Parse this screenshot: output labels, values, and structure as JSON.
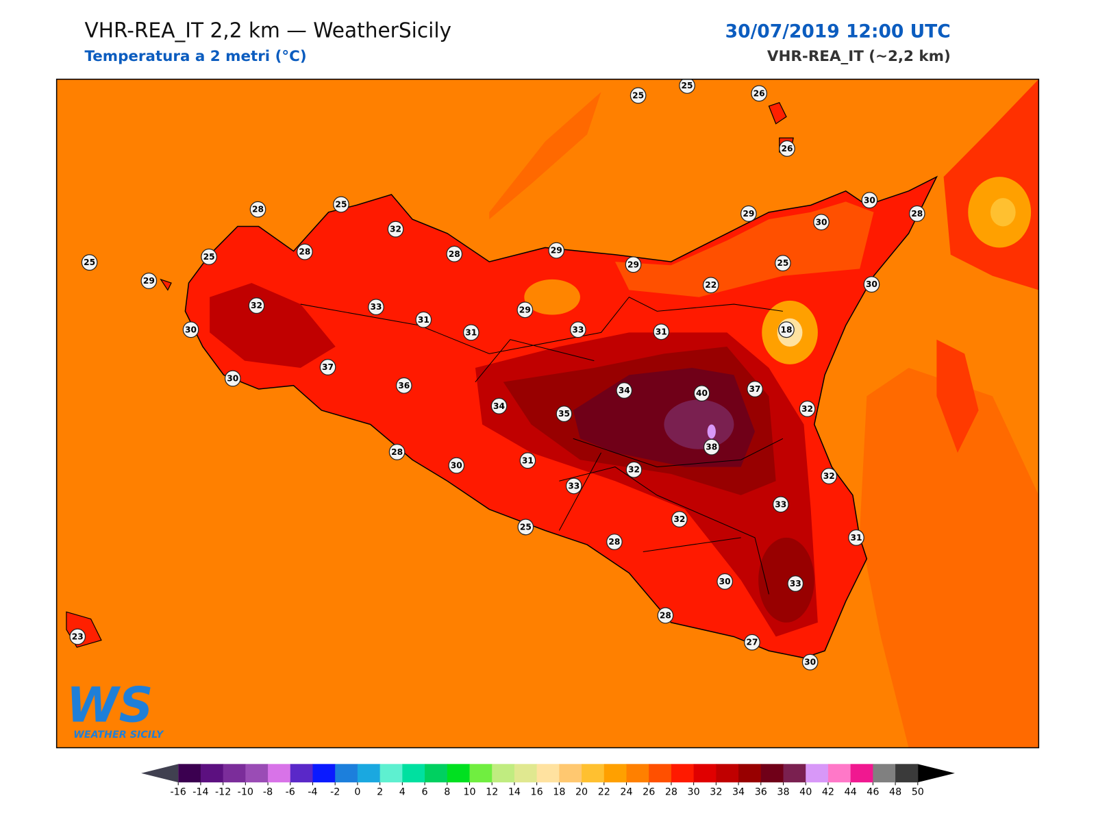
{
  "header": {
    "title": "VHR-REA_IT 2,2 km — WeatherSicily",
    "subtitle": "Temperatura a 2 metri (°C)",
    "datetime": "30/07/2019 12:00 UTC",
    "model": "VHR-REA_IT (~2,2 km)"
  },
  "stations": [
    25,
    25,
    26,
    26,
    28,
    25,
    32,
    28,
    28,
    29,
    29,
    29,
    30,
    30,
    28,
    25,
    25,
    29,
    32,
    33,
    31,
    31,
    29,
    33,
    22,
    25,
    30,
    18,
    31,
    30,
    30,
    37,
    36,
    34,
    35,
    34,
    40,
    37,
    32,
    38,
    28,
    30,
    31,
    33,
    32,
    32,
    33,
    32,
    31,
    25,
    28,
    30,
    33,
    28,
    27,
    30,
    23
  ],
  "logo": {
    "mark": "WS",
    "text": "WEATHER SICILY"
  },
  "colorbar": {
    "ticks": [
      -16,
      -14,
      -12,
      -10,
      -8,
      -6,
      -4,
      -2,
      0,
      2,
      4,
      6,
      8,
      10,
      12,
      14,
      16,
      18,
      20,
      22,
      24,
      26,
      28,
      30,
      32,
      34,
      36,
      38,
      40,
      42,
      44,
      46,
      48,
      50
    ],
    "colors": [
      "#3b0050",
      "#5c1080",
      "#7b2d9a",
      "#9a4cb5",
      "#d873e8",
      "#5a28c8",
      "#0a1aff",
      "#1c7fdc",
      "#1aa8e0",
      "#5ef0d0",
      "#00e0a0",
      "#00d060",
      "#00e020",
      "#70ee40",
      "#c0ec80",
      "#e0e890",
      "#ffe2a0",
      "#ffc870",
      "#ffc030",
      "#ffa000",
      "#ff8000",
      "#ff5000",
      "#ff1a00",
      "#e00000",
      "#c00000",
      "#980000",
      "#700018",
      "#7a2050",
      "#d898f8",
      "#ff78c8",
      "#f01890",
      "#808080",
      "#3a3a3a"
    ],
    "under_color": "#404050",
    "over_color": "#000000"
  }
}
